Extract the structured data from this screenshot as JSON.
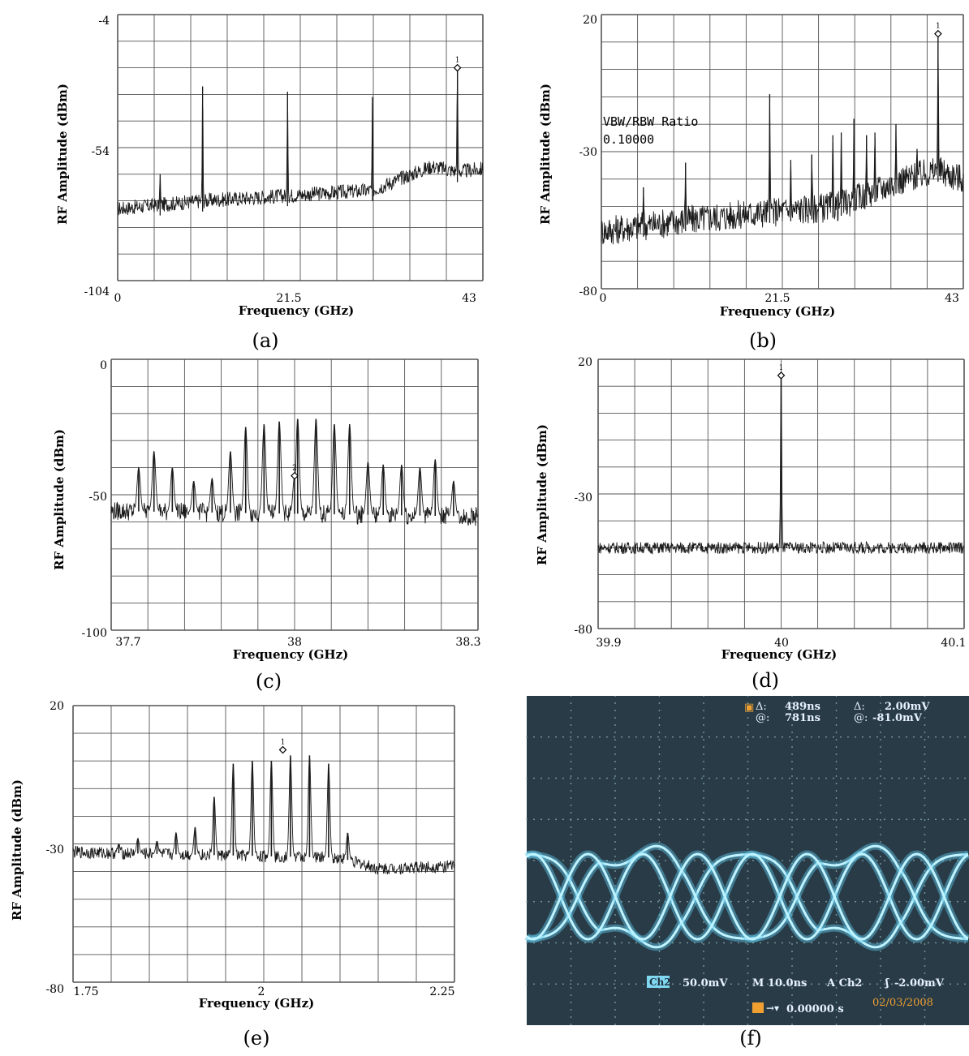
{
  "chart_data": [
    {
      "panel": "a",
      "type": "line",
      "caption": "(a)",
      "xlabel": "Frequency (GHz)",
      "ylabel": "RF Amplitude (dBm)",
      "xlim": [
        0,
        43
      ],
      "ylim": [
        -104,
        -4
      ],
      "xticks": [
        "0",
        "21.5",
        "43"
      ],
      "yticks": [
        "-4",
        "-54",
        "-104"
      ],
      "grid": true,
      "noise_floor": [
        [
          0,
          -77
        ],
        [
          10,
          -74
        ],
        [
          20,
          -72
        ],
        [
          30,
          -70
        ],
        [
          33,
          -66
        ],
        [
          37,
          -61
        ],
        [
          40,
          -63
        ],
        [
          43,
          -62
        ]
      ],
      "peaks": [
        {
          "x": 5,
          "y": -64
        },
        {
          "x": 10,
          "y": -31
        },
        {
          "x": 20,
          "y": -33
        },
        {
          "x": 30,
          "y": -35
        },
        {
          "x": 40,
          "y": -24
        }
      ],
      "marker": {
        "label": "1",
        "x": 40,
        "y": -24
      }
    },
    {
      "panel": "b",
      "type": "line",
      "caption": "(b)",
      "xlabel": "Frequency (GHz)",
      "ylabel": "RF Amplitude (dBm)",
      "xlim": [
        0,
        43
      ],
      "ylim": [
        -80,
        20
      ],
      "xticks": [
        "0",
        "21.5",
        "43"
      ],
      "yticks": [
        "20",
        "-30",
        "-80"
      ],
      "grid": true,
      "annotation": [
        "VBW/RBW Ratio",
        "0.10000"
      ],
      "noise_floor": [
        [
          0,
          -59
        ],
        [
          10,
          -55
        ],
        [
          20,
          -52
        ],
        [
          28,
          -50
        ],
        [
          32,
          -45
        ],
        [
          36,
          -40
        ],
        [
          40,
          -37
        ],
        [
          43,
          -40
        ]
      ],
      "peaks": [
        {
          "x": 5,
          "y": -43
        },
        {
          "x": 10,
          "y": -34
        },
        {
          "x": 20,
          "y": -9
        },
        {
          "x": 22.5,
          "y": -33
        },
        {
          "x": 25,
          "y": -31
        },
        {
          "x": 27.5,
          "y": -24
        },
        {
          "x": 28.5,
          "y": -23
        },
        {
          "x": 30,
          "y": -18
        },
        {
          "x": 31.5,
          "y": -24
        },
        {
          "x": 32.5,
          "y": -23
        },
        {
          "x": 35,
          "y": -20
        },
        {
          "x": 37.5,
          "y": -29
        },
        {
          "x": 40,
          "y": 13
        }
      ],
      "marker": {
        "label": "1",
        "x": 40,
        "y": 13
      }
    },
    {
      "panel": "c",
      "type": "line",
      "caption": "(c)",
      "xlabel": "Frequency (GHz)",
      "ylabel": "RF Amplitude (dBm)",
      "xlim": [
        37.7,
        38.3
      ],
      "ylim": [
        -100,
        0
      ],
      "xticks": [
        "37.7",
        "38",
        "38.3"
      ],
      "yticks": [
        "0",
        "-50",
        "-100"
      ],
      "grid": true,
      "noise_floor": [
        [
          37.7,
          -56
        ],
        [
          38.3,
          -58
        ]
      ],
      "peaks": [
        {
          "x": 37.745,
          "y": -40
        },
        {
          "x": 37.77,
          "y": -34
        },
        {
          "x": 37.8,
          "y": -40
        },
        {
          "x": 37.835,
          "y": -45
        },
        {
          "x": 37.865,
          "y": -44
        },
        {
          "x": 37.895,
          "y": -34
        },
        {
          "x": 37.92,
          "y": -25
        },
        {
          "x": 37.95,
          "y": -24
        },
        {
          "x": 37.975,
          "y": -23
        },
        {
          "x": 38.0,
          "y": -43
        },
        {
          "x": 38.005,
          "y": -22
        },
        {
          "x": 38.035,
          "y": -22
        },
        {
          "x": 38.065,
          "y": -24
        },
        {
          "x": 38.09,
          "y": -24
        },
        {
          "x": 38.12,
          "y": -38
        },
        {
          "x": 38.145,
          "y": -39
        },
        {
          "x": 38.175,
          "y": -39
        },
        {
          "x": 38.205,
          "y": -40
        },
        {
          "x": 38.23,
          "y": -37
        },
        {
          "x": 38.26,
          "y": -45
        }
      ],
      "marker": {
        "label": "2",
        "x": 38.0,
        "y": -43
      }
    },
    {
      "panel": "d",
      "type": "line",
      "caption": "(d)",
      "xlabel": "Frequency (GHz)",
      "ylabel": "RF Amplitude (dBm)",
      "xlim": [
        39.9,
        40.1
      ],
      "ylim": [
        -80,
        20
      ],
      "xticks": [
        "39.9",
        "40",
        "40.1"
      ],
      "yticks": [
        "20",
        "-30",
        "-80"
      ],
      "grid": true,
      "noise_floor": [
        [
          39.9,
          -50
        ],
        [
          40.1,
          -50
        ]
      ],
      "peaks": [
        {
          "x": 40.0,
          "y": 14
        }
      ],
      "marker": {
        "label": "1",
        "x": 40.0,
        "y": 14
      }
    },
    {
      "panel": "e",
      "type": "line",
      "caption": "(e)",
      "xlabel": "Frequency (GHz)",
      "ylabel": "RF Amplitude (dBm)",
      "xlim": [
        1.75,
        2.25
      ],
      "ylim": [
        -80,
        20
      ],
      "xticks": [
        "1.75",
        "2",
        "2.25"
      ],
      "yticks": [
        "20",
        "-30",
        "-80"
      ],
      "grid": true,
      "noise_floor": [
        [
          1.75,
          -33
        ],
        [
          2.1,
          -35
        ],
        [
          2.15,
          -39
        ],
        [
          2.25,
          -38
        ]
      ],
      "peaks": [
        {
          "x": 1.81,
          "y": -30
        },
        {
          "x": 1.835,
          "y": -28
        },
        {
          "x": 1.86,
          "y": -29
        },
        {
          "x": 1.885,
          "y": -26
        },
        {
          "x": 1.91,
          "y": -24
        },
        {
          "x": 1.935,
          "y": -13
        },
        {
          "x": 1.96,
          "y": -1
        },
        {
          "x": 1.985,
          "y": 0
        },
        {
          "x": 2.01,
          "y": 0
        },
        {
          "x": 2.035,
          "y": 2
        },
        {
          "x": 2.06,
          "y": 2
        },
        {
          "x": 2.085,
          "y": -1
        },
        {
          "x": 2.11,
          "y": -26
        }
      ],
      "marker": {
        "label": "1",
        "x": 2.025,
        "y": 4
      }
    },
    {
      "panel": "f",
      "type": "line",
      "caption": "(f)",
      "scope_readout": {
        "delta_time": "489ns",
        "at_time": "781ns",
        "delta_voltage": "2.00mV",
        "at_voltage": "-81.0mV",
        "channel_badge": "Ch2",
        "channel_scale": "50.0mV",
        "timebase": "M 10.0ns",
        "trigger": "A  Ch2",
        "trigger_level": "-2.00mV",
        "position": "0.00000 s",
        "date": "02/03/2008"
      }
    }
  ],
  "colors": {
    "trace": "#1a1a1a",
    "grid": "#555555",
    "scope_bg": "#283b47",
    "scope_trace": "#8be8ff",
    "scope_text": "#e8f1ff",
    "scope_orange": "#f0a030"
  }
}
